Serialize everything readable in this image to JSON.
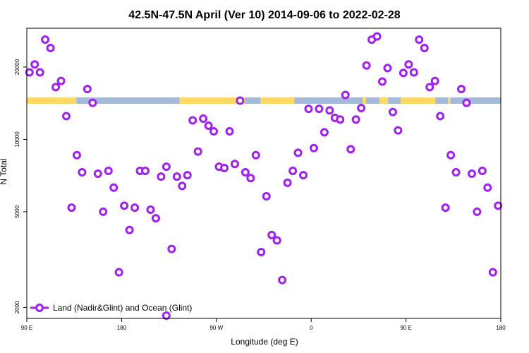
{
  "chart_data": {
    "type": "scatter",
    "title": "42.5N-47.5N April (Ver 10)   2014-09-06 to 2022-02-28",
    "xlabel": "Longitude (deg E)",
    "ylabel": "N Total",
    "y_scale": "log",
    "x_range": [
      90,
      540
    ],
    "y_range": [
      1800,
      29000
    ],
    "x_ticks": [
      {
        "value": 90,
        "label": "90 E"
      },
      {
        "value": 180,
        "label": "180"
      },
      {
        "value": 270,
        "label": "90 W"
      },
      {
        "value": 360,
        "label": "0"
      },
      {
        "value": 450,
        "label": "90 E"
      },
      {
        "value": 540,
        "label": "180"
      }
    ],
    "y_ticks": [
      {
        "value": 2000,
        "label": "2000"
      },
      {
        "value": 5000,
        "label": "5000"
      },
      {
        "value": 10000,
        "label": "10000"
      },
      {
        "value": 20000,
        "label": "20000"
      }
    ],
    "marker_color": "#a020f0",
    "band": {
      "y_value": 14500,
      "land_color": "#ffd966",
      "ocean_color": "#a5b9d8",
      "segments": [
        {
          "from": 90,
          "to": 137,
          "type": "land"
        },
        {
          "from": 137,
          "to": 235,
          "type": "ocean"
        },
        {
          "from": 235,
          "to": 297,
          "type": "land"
        },
        {
          "from": 297,
          "to": 312,
          "type": "ocean"
        },
        {
          "from": 312,
          "to": 344,
          "type": "land"
        },
        {
          "from": 344,
          "to": 409,
          "type": "ocean"
        },
        {
          "from": 409,
          "to": 412,
          "type": "land"
        },
        {
          "from": 412,
          "to": 425,
          "type": "ocean"
        },
        {
          "from": 425,
          "to": 433,
          "type": "land"
        },
        {
          "from": 433,
          "to": 445,
          "type": "ocean"
        },
        {
          "from": 445,
          "to": 478,
          "type": "land"
        },
        {
          "from": 478,
          "to": 490,
          "type": "ocean"
        },
        {
          "from": 490,
          "to": 492,
          "type": "land"
        },
        {
          "from": 492,
          "to": 540,
          "type": "ocean"
        }
      ]
    },
    "series": [
      {
        "name": "Land (Nadir&Glint) and Ocean (Glint)",
        "points": [
          [
            92.5,
            19000
          ],
          [
            97.5,
            20500
          ],
          [
            102.5,
            19000
          ],
          [
            107.5,
            26000
          ],
          [
            112.5,
            24000
          ],
          [
            117.5,
            16500
          ],
          [
            122.5,
            17500
          ],
          [
            127.5,
            12500
          ],
          [
            132.5,
            5200
          ],
          [
            137.5,
            8600
          ],
          [
            142.5,
            7300
          ],
          [
            147.5,
            16200
          ],
          [
            152.5,
            14200
          ],
          [
            157.5,
            7200
          ],
          [
            162.5,
            5000
          ],
          [
            167.5,
            7400
          ],
          [
            172.5,
            6300
          ],
          [
            177.5,
            2800
          ],
          [
            182.5,
            5300
          ],
          [
            187.5,
            4200
          ],
          [
            192.5,
            5200
          ],
          [
            197.5,
            7400
          ],
          [
            202.5,
            7400
          ],
          [
            207.5,
            5100
          ],
          [
            212.5,
            4700
          ],
          [
            217.5,
            7000
          ],
          [
            222.5,
            7700
          ],
          [
            227.5,
            3500
          ],
          [
            232.5,
            7000
          ],
          [
            237.5,
            6400
          ],
          [
            242.5,
            7100
          ],
          [
            247.5,
            12000
          ],
          [
            252.5,
            8900
          ],
          [
            257.5,
            12200
          ],
          [
            262.5,
            11400
          ],
          [
            267.5,
            10800
          ],
          [
            272.5,
            7700
          ],
          [
            277.5,
            7600
          ],
          [
            282.5,
            10800
          ],
          [
            287.5,
            7900
          ],
          [
            292.5,
            14500
          ],
          [
            297.5,
            7300
          ],
          [
            302.5,
            6900
          ],
          [
            307.5,
            8600
          ],
          [
            312.5,
            3400
          ],
          [
            317.5,
            5800
          ],
          [
            322.5,
            4000
          ],
          [
            327.5,
            3800
          ],
          [
            332.5,
            2600
          ],
          [
            337.5,
            6600
          ],
          [
            342.5,
            7400
          ],
          [
            347.5,
            8800
          ],
          [
            352.5,
            7100
          ],
          [
            357.5,
            13400
          ],
          [
            362.5,
            9200
          ],
          [
            367.5,
            13400
          ],
          [
            372.5,
            10700
          ],
          [
            377.5,
            13200
          ],
          [
            382.5,
            12300
          ],
          [
            387.5,
            12100
          ],
          [
            392.5,
            15300
          ],
          [
            397.5,
            9100
          ],
          [
            402.5,
            12100
          ],
          [
            407.5,
            13500
          ],
          [
            412.5,
            20300
          ],
          [
            417.5,
            26000
          ],
          [
            422.5,
            26800
          ],
          [
            427.5,
            17400
          ],
          [
            432.5,
            19800
          ],
          [
            437.5,
            13000
          ],
          [
            442.5,
            10900
          ],
          [
            447.5,
            18900
          ],
          [
            452.5,
            20500
          ],
          [
            457.5,
            19000
          ],
          [
            462.5,
            26000
          ],
          [
            467.5,
            24000
          ],
          [
            472.5,
            16500
          ],
          [
            477.5,
            17500
          ],
          [
            482.5,
            12500
          ],
          [
            487.5,
            5200
          ],
          [
            492.5,
            8600
          ],
          [
            497.5,
            7300
          ],
          [
            502.5,
            16200
          ],
          [
            507.5,
            14200
          ],
          [
            512.5,
            7200
          ],
          [
            517.5,
            5000
          ],
          [
            522.5,
            7400
          ],
          [
            527.5,
            6300
          ],
          [
            532.5,
            2800
          ],
          [
            537.5,
            5300
          ],
          [
            222.5,
            1850
          ]
        ]
      }
    ]
  }
}
